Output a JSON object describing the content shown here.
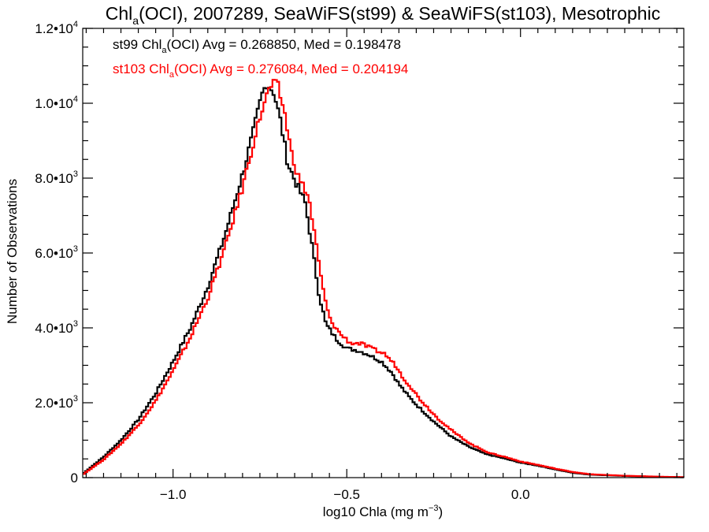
{
  "chart_data": {
    "type": "line",
    "step": true,
    "title_main": "Chl",
    "title_sub": "a",
    "title_rest": "(OCI), 2007289, SeaWiFS(st99) & SeaWiFS(st103), Mesotrophic",
    "xlabel_main": "log10 Chla (mg m",
    "xlabel_sup": "−3",
    "xlabel_end": ")",
    "ylabel": "Number of Observations",
    "xlim": [
      -1.26,
      0.47
    ],
    "ylim": [
      0,
      12000
    ],
    "x_ticks": [
      {
        "value": -1.0,
        "label": "−1.0"
      },
      {
        "value": -0.5,
        "label": "−0.5"
      },
      {
        "value": 0.0,
        "label": "0.0"
      }
    ],
    "y_ticks": [
      {
        "value": 0,
        "mant": "0",
        "exp": ""
      },
      {
        "value": 2000,
        "mant": "2.0•10",
        "exp": "3"
      },
      {
        "value": 4000,
        "mant": "4.0•10",
        "exp": "3"
      },
      {
        "value": 6000,
        "mant": "6.0•10",
        "exp": "3"
      },
      {
        "value": 8000,
        "mant": "8.0•10",
        "exp": "3"
      },
      {
        "value": 10000,
        "mant": "1.0•10",
        "exp": "4"
      },
      {
        "value": 12000,
        "mant": "1.2•10",
        "exp": "4"
      }
    ],
    "series": [
      {
        "color": "#000000",
        "stat_prefix": "st99 Chl",
        "stat_sub": "a",
        "stat_rest": "(OCI) Avg = 0.268850, Med = 0.198478",
        "x": [
          -1.26,
          -1.2,
          -1.15,
          -1.1,
          -1.05,
          -1.0,
          -0.95,
          -0.9,
          -0.85,
          -0.8,
          -0.77,
          -0.745,
          -0.73,
          -0.71,
          -0.69,
          -0.67,
          -0.65,
          -0.62,
          -0.6,
          -0.58,
          -0.56,
          -0.53,
          -0.5,
          -0.47,
          -0.44,
          -0.4,
          -0.37,
          -0.35,
          -0.32,
          -0.3,
          -0.25,
          -0.2,
          -0.15,
          -0.1,
          -0.05,
          0.0,
          0.05,
          0.1,
          0.15,
          0.2,
          0.3,
          0.4,
          0.47
        ],
        "y": [
          100,
          550,
          1000,
          1550,
          2250,
          3100,
          4000,
          5100,
          6500,
          8100,
          9200,
          10200,
          10550,
          10300,
          9500,
          8400,
          7950,
          7350,
          6200,
          4900,
          4100,
          3700,
          3450,
          3400,
          3300,
          3100,
          2800,
          2500,
          2150,
          1950,
          1500,
          1100,
          830,
          630,
          520,
          400,
          320,
          220,
          130,
          80,
          45,
          20,
          10
        ]
      },
      {
        "color": "#ff0000",
        "stat_prefix": "st103 Chl",
        "stat_sub": "a",
        "stat_rest": "(OCI) Avg = 0.276084, Med = 0.204194",
        "x": [
          -1.26,
          -1.2,
          -1.15,
          -1.1,
          -1.05,
          -1.0,
          -0.95,
          -0.9,
          -0.85,
          -0.8,
          -0.77,
          -0.745,
          -0.72,
          -0.7,
          -0.68,
          -0.66,
          -0.64,
          -0.61,
          -0.59,
          -0.57,
          -0.55,
          -0.52,
          -0.49,
          -0.46,
          -0.43,
          -0.39,
          -0.36,
          -0.34,
          -0.31,
          -0.29,
          -0.24,
          -0.19,
          -0.14,
          -0.09,
          -0.04,
          0.0,
          0.05,
          0.1,
          0.15,
          0.2,
          0.3,
          0.4,
          0.47
        ],
        "y": [
          80,
          480,
          900,
          1400,
          2050,
          2850,
          3750,
          4800,
          6150,
          7750,
          8900,
          9800,
          10450,
          10500,
          9800,
          8700,
          8050,
          7500,
          6350,
          5100,
          4250,
          3850,
          3600,
          3580,
          3450,
          3300,
          3000,
          2700,
          2350,
          2100,
          1600,
          1200,
          880,
          660,
          540,
          430,
          340,
          240,
          150,
          90,
          50,
          25,
          12
        ]
      }
    ]
  }
}
